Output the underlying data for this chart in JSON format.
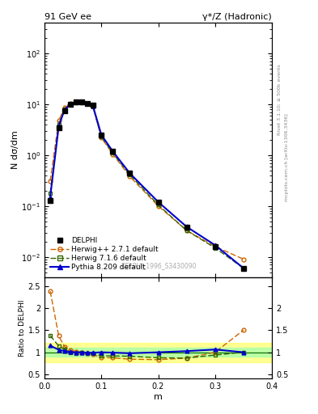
{
  "title_left": "91 GeV ee",
  "title_right": "γ*/Z (Hadronic)",
  "ylabel_main": "N dσ/dm",
  "ylabel_ratio": "Ratio to DELPHI",
  "xlabel": "m",
  "watermark": "DELPHI_1996_S3430090",
  "right_label": "mcplots.cern.ch [arXiv:1306.3436]",
  "right_label2": "Rivet 3.1.10; ≥ 500k events",
  "delphi_x": [
    0.01,
    0.025,
    0.035,
    0.045,
    0.055,
    0.065,
    0.075,
    0.085,
    0.1,
    0.12,
    0.15,
    0.2,
    0.25,
    0.3,
    0.35
  ],
  "delphi_y": [
    0.13,
    3.5,
    7.5,
    10.0,
    11.0,
    11.0,
    10.5,
    9.5,
    2.5,
    1.2,
    0.45,
    0.12,
    0.038,
    0.016,
    0.006
  ],
  "herwig_x": [
    0.01,
    0.025,
    0.035,
    0.045,
    0.055,
    0.065,
    0.075,
    0.085,
    0.1,
    0.12,
    0.15,
    0.2,
    0.25,
    0.3,
    0.35
  ],
  "herwig_y": [
    0.31,
    4.8,
    8.5,
    10.5,
    11.2,
    11.0,
    10.2,
    9.0,
    2.2,
    1.05,
    0.38,
    0.1,
    0.033,
    0.016,
    0.009
  ],
  "herwig716_x": [
    0.01,
    0.025,
    0.035,
    0.045,
    0.055,
    0.065,
    0.075,
    0.085,
    0.1,
    0.12,
    0.15,
    0.2,
    0.25,
    0.3,
    0.35
  ],
  "herwig716_y": [
    0.18,
    4.0,
    8.0,
    10.0,
    10.8,
    10.9,
    10.3,
    9.2,
    2.3,
    1.1,
    0.41,
    0.105,
    0.033,
    0.015,
    0.006
  ],
  "pythia_x": [
    0.01,
    0.025,
    0.035,
    0.045,
    0.055,
    0.065,
    0.075,
    0.085,
    0.1,
    0.12,
    0.15,
    0.2,
    0.25,
    0.3,
    0.35
  ],
  "pythia_y": [
    0.15,
    3.7,
    7.7,
    10.1,
    11.0,
    11.0,
    10.4,
    9.4,
    2.5,
    1.19,
    0.44,
    0.12,
    0.039,
    0.017,
    0.006
  ],
  "ratio_herwig_y": [
    2.38,
    1.37,
    1.13,
    1.05,
    1.02,
    1.0,
    0.97,
    0.95,
    0.88,
    0.875,
    0.844,
    0.833,
    0.868,
    1.0,
    1.5
  ],
  "ratio_herwig716_y": [
    1.38,
    1.14,
    1.07,
    1.0,
    0.982,
    0.99,
    0.981,
    0.968,
    0.92,
    0.917,
    0.911,
    0.875,
    0.868,
    0.9375,
    1.0
  ],
  "ratio_pythia_y": [
    1.15,
    1.057,
    1.027,
    1.01,
    1.0,
    1.0,
    0.99,
    0.989,
    1.0,
    0.992,
    0.978,
    1.0,
    1.026,
    1.0625,
    1.0
  ],
  "color_delphi": "#000000",
  "color_herwig": "#cc6600",
  "color_herwig716": "#336600",
  "color_pythia": "#0000cc",
  "ylim_main": [
    0.004,
    400
  ],
  "ylim_ratio": [
    0.4,
    2.7
  ],
  "xlim": [
    0.0,
    0.4
  ]
}
